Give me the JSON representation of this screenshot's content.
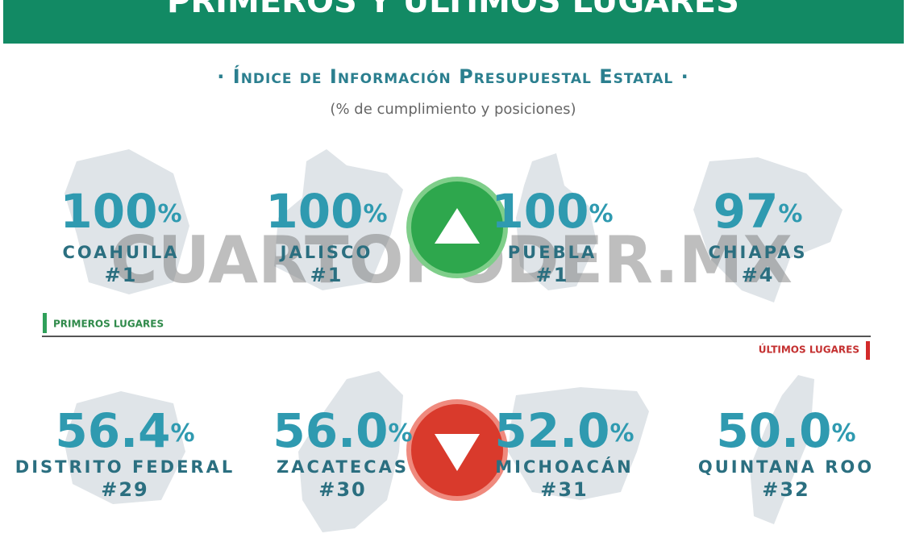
{
  "header": {
    "title": "PRIMEROS Y ÚLTIMOS LUGARES"
  },
  "title": "· Índice de Información Presupuestal Estatal ·",
  "subtitle": "(% de cumplimiento y posiciones)",
  "watermark": "CUARTOPODER.MX",
  "top": {
    "label": "PRIMEROS LUGARES",
    "items": [
      {
        "value": "100",
        "unit": "%",
        "state": "COAHUILA",
        "rank": "#1"
      },
      {
        "value": "100",
        "unit": "%",
        "state": "JALISCO",
        "rank": "#1"
      },
      {
        "value": "100",
        "unit": "%",
        "state": "PUEBLA",
        "rank": "#1"
      },
      {
        "value": "97",
        "unit": "%",
        "state": "CHIAPAS",
        "rank": "#4"
      }
    ]
  },
  "bottom": {
    "label": "ÚLTIMOS LUGARES",
    "items": [
      {
        "value": "56.4",
        "unit": "%",
        "state": "DISTRITO FEDERAL",
        "rank": "#29"
      },
      {
        "value": "56.0",
        "unit": "%",
        "state": "ZACATECAS",
        "rank": "#30"
      },
      {
        "value": "52.0",
        "unit": "%",
        "state": "MICHOACÁN",
        "rank": "#31"
      },
      {
        "value": "50.0",
        "unit": "%",
        "state": "QUINTANA ROO",
        "rank": "#32"
      }
    ]
  }
}
